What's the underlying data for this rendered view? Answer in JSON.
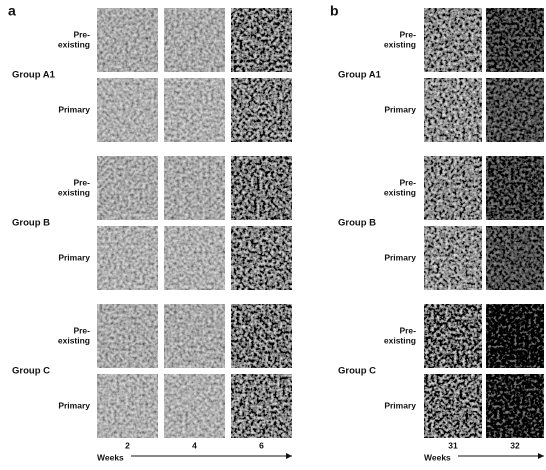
{
  "panels": [
    {
      "label": "a",
      "groups": [
        {
          "name": "Group A1",
          "rows": [
            [
              "Pre-",
              "existing"
            ],
            [
              "Primary"
            ]
          ]
        },
        {
          "name": "Group B",
          "rows": [
            [
              "Pre-",
              "existing"
            ],
            [
              "Primary"
            ]
          ]
        },
        {
          "name": "Group C",
          "rows": [
            [
              "Pre-",
              "existing"
            ],
            [
              "Primary"
            ]
          ]
        }
      ],
      "axis_label": "Weeks",
      "ticks": [
        "2",
        "4",
        "6"
      ]
    },
    {
      "label": "b",
      "groups": [
        {
          "name": "Group A1",
          "rows": [
            [
              "Pre-",
              "existing"
            ],
            [
              "Primary"
            ]
          ]
        },
        {
          "name": "Group B",
          "rows": [
            [
              "Pre-",
              "existing"
            ],
            [
              "Primary"
            ]
          ]
        },
        {
          "name": "Group C",
          "rows": [
            [
              "Pre-",
              "existing"
            ],
            [
              "Primary"
            ]
          ]
        }
      ],
      "axis_label": "Weeks",
      "ticks": [
        "31",
        "32"
      ]
    }
  ]
}
